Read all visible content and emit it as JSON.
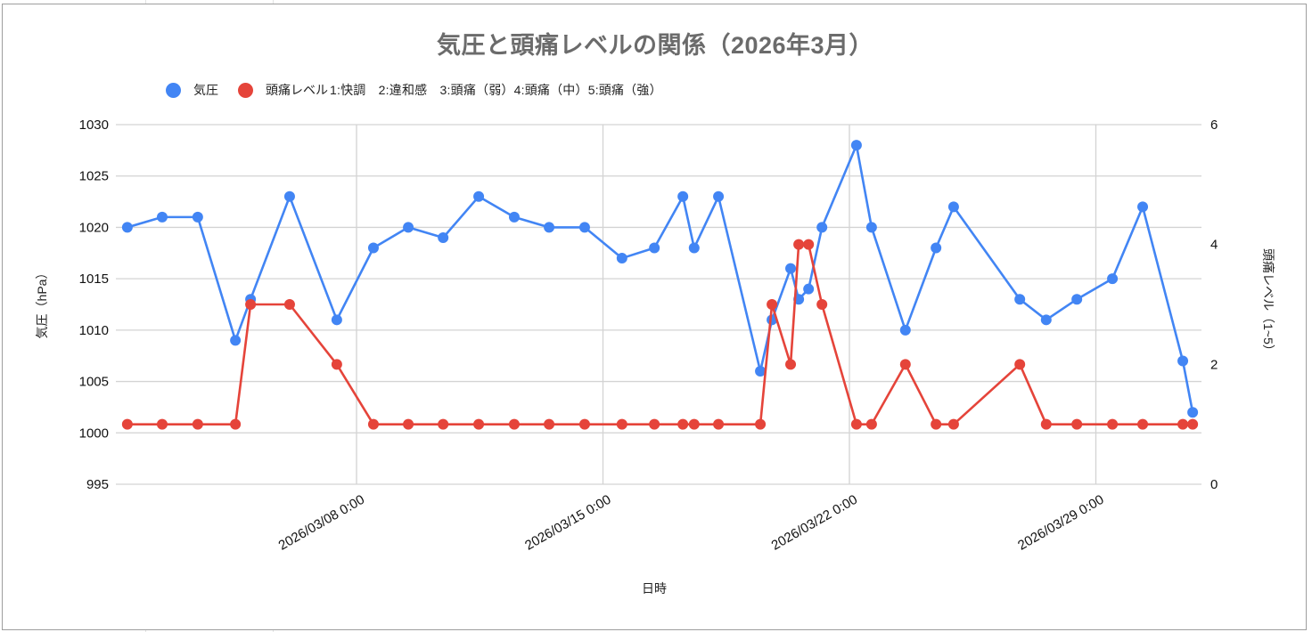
{
  "chart": {
    "title": "気圧と頭痛レベルの関係（2026年3月）",
    "legend": [
      {
        "label": "気圧",
        "color": "#4285f4"
      },
      {
        "label": "頭痛レベル",
        "color": "#e5443a"
      }
    ],
    "legend_note": "1:快調　2:違和感　3:頭痛（弱）4:頭痛（中）5:頭痛（強）",
    "x_axis_title": "日時",
    "left_axis_title": "気圧（hPa）",
    "right_axis_title": "頭痛レベル（1~5）"
  },
  "chart_data": {
    "type": "line",
    "title": "気圧と頭痛レベルの関係（2026年3月）",
    "xlabel": "日時",
    "ylabel": "気圧（hPa）",
    "y2label": "頭痛レベル（1~5）",
    "ylim": [
      995,
      1030
    ],
    "y2lim": [
      0,
      6
    ],
    "yticks": [
      995,
      1000,
      1005,
      1010,
      1015,
      1020,
      1025,
      1030
    ],
    "y2ticks": [
      0,
      2,
      4,
      6
    ],
    "xticks": [
      {
        "label": "2026/03/08 0:00",
        "day": 7
      },
      {
        "label": "2026/03/15 0:00",
        "day": 14
      },
      {
        "label": "2026/03/22 0:00",
        "day": 21
      },
      {
        "label": "2026/03/29 0:00",
        "day": 28
      }
    ],
    "xlim_days": [
      -0.85,
      31.3
    ],
    "grid": true,
    "legend_position": "top",
    "x_days": [
      0.49,
      1.48,
      2.49,
      3.56,
      3.99,
      5.1,
      6.44,
      7.48,
      8.47,
      9.46,
      10.47,
      11.48,
      12.47,
      13.48,
      14.54,
      15.46,
      16.27,
      16.59,
      17.28,
      18.47,
      18.8,
      19.33,
      19.56,
      19.84,
      20.22,
      21.2,
      21.63,
      22.59,
      23.46,
      23.96,
      25.84,
      26.59,
      27.46,
      28.47,
      29.33,
      30.47,
      30.75
    ],
    "series": [
      {
        "name": "気圧",
        "axis": "left",
        "color": "#4285f4",
        "values": [
          1020,
          1021,
          1021,
          1009,
          1013,
          1023,
          1011,
          1018,
          1020,
          1019,
          1023,
          1021,
          1020,
          1020,
          1017,
          1018,
          1023,
          1018,
          1023,
          1006,
          1011,
          1016,
          1013,
          1014,
          1020,
          1028,
          1020,
          1010,
          1018,
          1022,
          1013,
          1011,
          1013,
          1015,
          1022,
          1007,
          1002
        ]
      },
      {
        "name": "頭痛レベル",
        "axis": "right",
        "color": "#e5443a",
        "values": [
          1,
          1,
          1,
          1,
          3,
          3,
          2,
          1,
          1,
          1,
          1,
          1,
          1,
          1,
          1,
          1,
          1,
          1,
          1,
          1,
          3,
          2,
          4,
          4,
          3,
          1,
          1,
          2,
          1,
          1,
          2,
          1,
          1,
          1,
          1,
          1,
          1
        ]
      }
    ]
  }
}
